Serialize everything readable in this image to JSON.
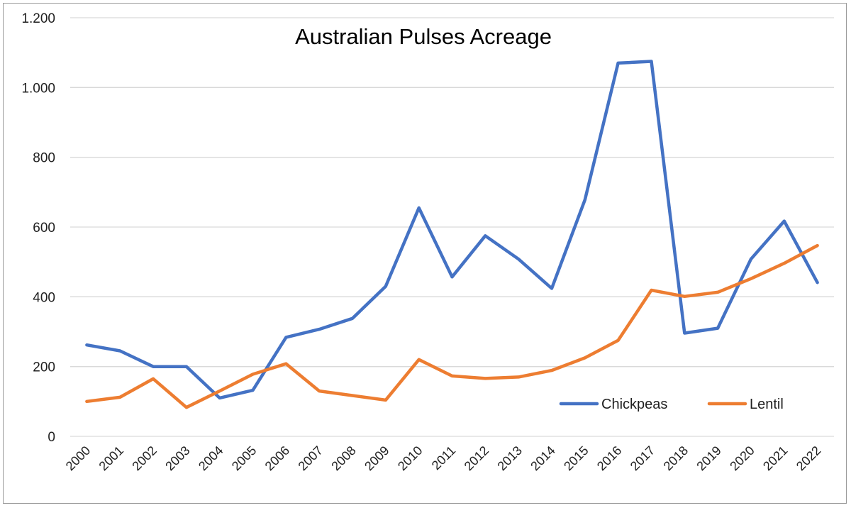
{
  "chart_data": {
    "type": "line",
    "title": "Australian Pulses Acreage",
    "xlabel": "",
    "ylabel": "",
    "ylim": [
      0,
      1200
    ],
    "yticks": [
      0,
      200,
      400,
      600,
      800,
      1000,
      1200
    ],
    "ytick_labels": [
      "0",
      "200",
      "400",
      "600",
      "800",
      "1.000",
      "1.200"
    ],
    "grid": true,
    "legend_position": "bottom-right",
    "categories": [
      "2000",
      "2001",
      "2002",
      "2003",
      "2004",
      "2005",
      "2006",
      "2007",
      "2008",
      "2009",
      "2010",
      "2011",
      "2012",
      "2013",
      "2014",
      "2015",
      "2016",
      "2017",
      "2018",
      "2019",
      "2020",
      "2021",
      "2022"
    ],
    "series": [
      {
        "name": "Chickpeas",
        "color": "#4472C4",
        "values": [
          262,
          245,
          200,
          200,
          110,
          132,
          284,
          307,
          338,
          430,
          655,
          457,
          575,
          508,
          424,
          678,
          1070,
          1075,
          296,
          310,
          508,
          617,
          441
        ]
      },
      {
        "name": "Lentil",
        "color": "#ED7D31",
        "values": [
          100,
          112,
          165,
          83,
          130,
          178,
          208,
          130,
          117,
          104,
          220,
          173,
          166,
          170,
          189,
          225,
          275,
          419,
          401,
          413,
          452,
          496,
          547
        ]
      }
    ]
  }
}
